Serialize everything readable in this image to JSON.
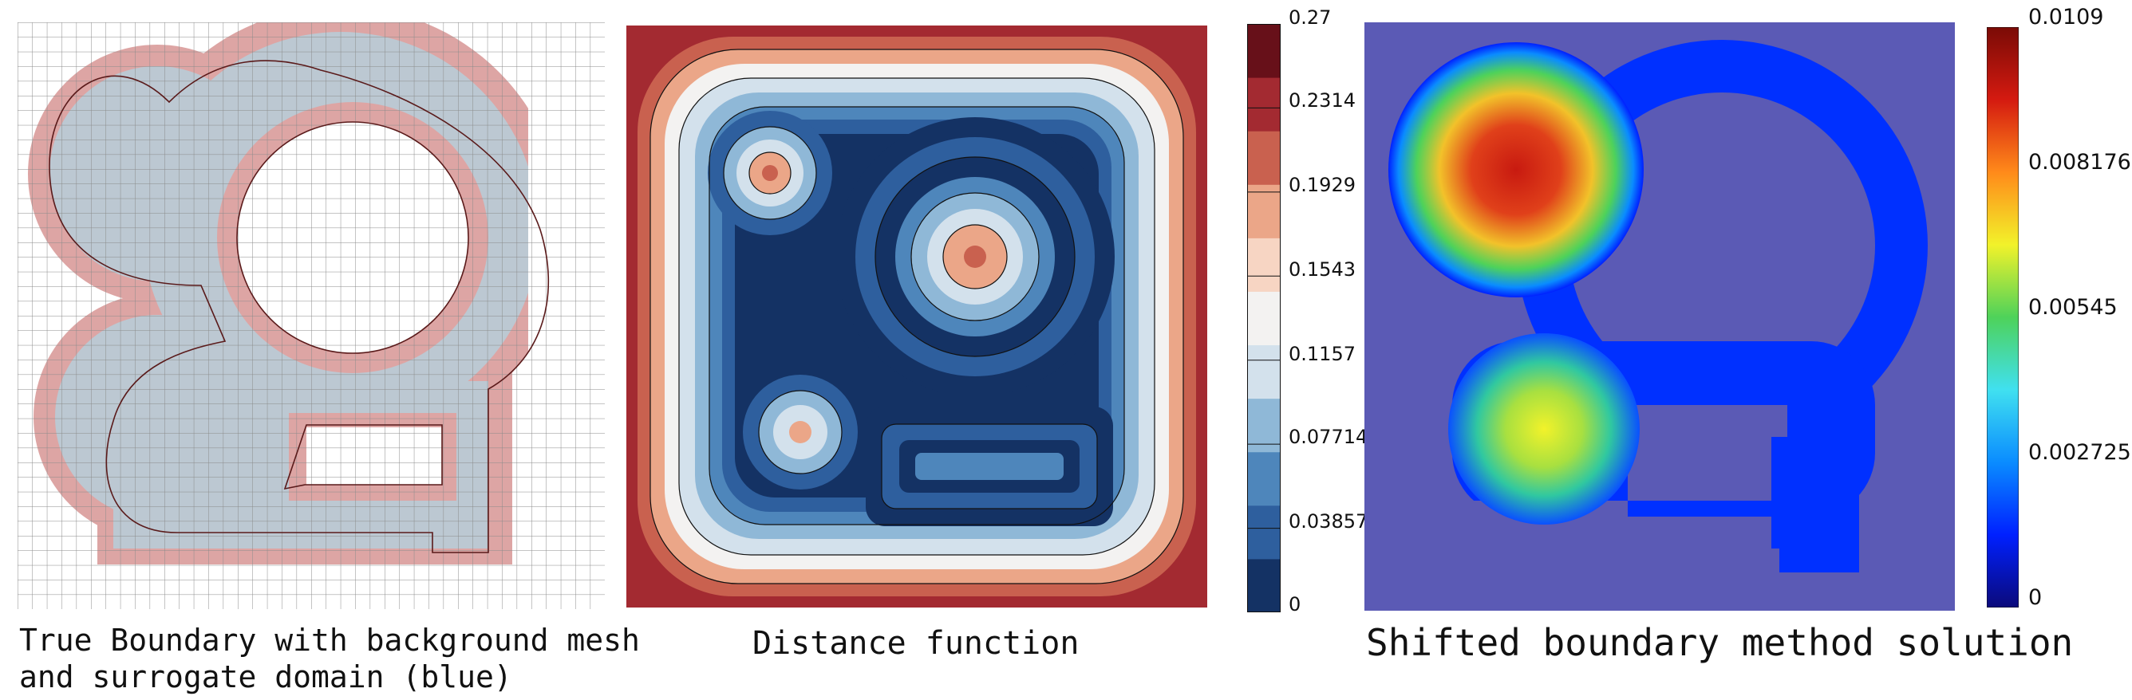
{
  "panels": [
    {
      "id": "mesh",
      "caption_line1": "True Boundary with background mesh",
      "caption_line2": "and surrogate domain (blue)"
    },
    {
      "id": "distance",
      "caption": "Distance function"
    },
    {
      "id": "solution",
      "caption": "Shifted boundary method solution"
    }
  ],
  "colors": {
    "surrogate_fill": "#bcc8d2",
    "band_fill": "#dda5a4",
    "grid_line": "#8a8a8a",
    "boundary_line": "#5a1a1a",
    "solution_background": "#5b5ab5"
  },
  "colorbar_distance": {
    "ticks": [
      "0.27",
      "0.2314",
      "0.1929",
      "0.1543",
      "0.1157",
      "0.07714",
      "0.03857",
      "0"
    ],
    "bands": [
      "#143264",
      "#2e5f9e",
      "#4e86bb",
      "#8fb8d7",
      "#d3e1ec",
      "#f3f2f1",
      "#f7d5c3",
      "#eba688",
      "#c9614f",
      "#a32a31",
      "#671019"
    ]
  },
  "colorbar_solution": {
    "ticks": [
      "0.0109",
      "0.008176",
      "0.00545",
      "0.002725",
      "0"
    ],
    "gradient": [
      "#0b0a7a",
      "#0020ff",
      "#0a8cff",
      "#40e0f0",
      "#4ed25a",
      "#f2f22a",
      "#ff8a1a",
      "#d41a10",
      "#7a0b06"
    ]
  }
}
